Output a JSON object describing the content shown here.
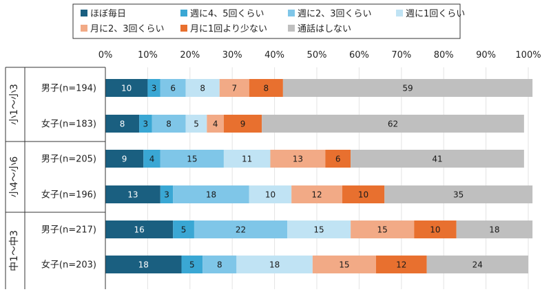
{
  "chart_data": {
    "type": "bar",
    "orientation": "horizontal",
    "stacked": true,
    "xlim": [
      0,
      100
    ],
    "x_ticks": [
      "0%",
      "10%",
      "20%",
      "30%",
      "40%",
      "50%",
      "60%",
      "70%",
      "80%",
      "90%",
      "100%"
    ],
    "groups": [
      {
        "label": "小1〜小3",
        "rows": [
          0,
          1
        ]
      },
      {
        "label": "小4〜小6",
        "rows": [
          2,
          3
        ]
      },
      {
        "label": "中1〜中3",
        "rows": [
          4,
          5
        ]
      }
    ],
    "categories": [
      "男子(n=194)",
      "女子(n=183)",
      "男子(n=205)",
      "女子(n=196)",
      "男子(n=217)",
      "女子(n=203)"
    ],
    "series": [
      {
        "name": "ほぼ毎日",
        "color": "#1a5f80",
        "text_color": "#ffffff",
        "values": [
          10,
          8,
          9,
          13,
          16,
          18
        ]
      },
      {
        "name": "週に4、5回くらい",
        "color": "#3aa7d4",
        "text_color": "#1a1a1a",
        "values": [
          3,
          3,
          4,
          3,
          5,
          5
        ]
      },
      {
        "name": "週に2、3回くらい",
        "color": "#7fc6e8",
        "text_color": "#1a1a1a",
        "values": [
          6,
          8,
          15,
          18,
          22,
          8
        ]
      },
      {
        "name": "週に1回くらい",
        "color": "#c0e3f4",
        "text_color": "#1a1a1a",
        "values": [
          8,
          5,
          11,
          10,
          15,
          18
        ]
      },
      {
        "name": "月に2、3回くらい",
        "color": "#f2aa86",
        "text_color": "#1a1a1a",
        "values": [
          7,
          4,
          13,
          12,
          15,
          15
        ]
      },
      {
        "name": "月に1回より少ない",
        "color": "#e8702f",
        "text_color": "#1a1a1a",
        "values": [
          8,
          9,
          6,
          10,
          10,
          12
        ]
      },
      {
        "name": "通話はしない",
        "color": "#bfbfbf",
        "text_color": "#1a1a1a",
        "values": [
          59,
          62,
          41,
          35,
          18,
          24
        ]
      }
    ],
    "grid": true,
    "legend_position": "top"
  }
}
